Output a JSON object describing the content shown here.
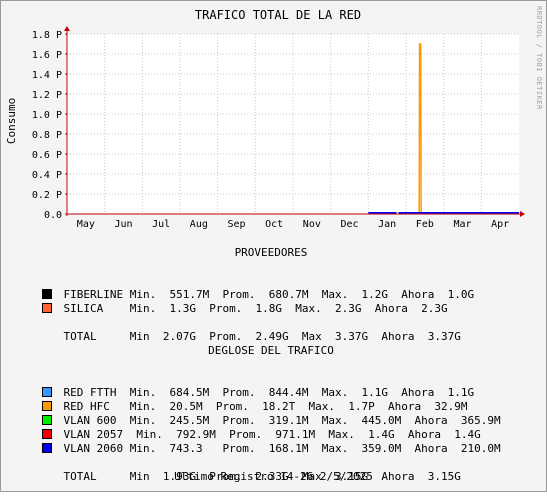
{
  "chart_data": {
    "type": "line",
    "title": "TRAFICO TOTAL DE LA RED",
    "ylabel": "Consumo",
    "watermark": "RRDTOOL / TOBI OETIKER",
    "categories": [
      "May",
      "Jun",
      "Jul",
      "Aug",
      "Sep",
      "Oct",
      "Nov",
      "Dec",
      "Jan",
      "Feb",
      "Mar",
      "Apr"
    ],
    "ylim": [
      0,
      1.8
    ],
    "yticks": [
      "0.0",
      "0.2 P",
      "0.4 P",
      "0.6 P",
      "0.8 P",
      "1.0 P",
      "1.2 P",
      "1.4 P",
      "1.6 P",
      "1.8 P"
    ],
    "grid": true,
    "series": [
      {
        "name": "RED HFC",
        "color": "#ff9900",
        "points": [
          {
            "month": 9.35,
            "value": 0
          },
          {
            "month": 9.36,
            "value": 1.7
          },
          {
            "month": 9.39,
            "value": 1.7
          },
          {
            "month": 9.4,
            "value": 0
          }
        ]
      },
      {
        "name": "VLAN 2060",
        "color": "#0000ff",
        "segments": [
          [
            8.0,
            8.75
          ],
          [
            8.8,
            12.0
          ]
        ],
        "value": 0
      }
    ]
  },
  "proveedores": {
    "title": "PROVEEDORES",
    "rows": [
      {
        "color": "#000000",
        "text": "FIBERLINE Min.  551.7M  Prom.  680.7M  Max.  1.2G  Ahora  1.0G"
      },
      {
        "color": "#ff6633",
        "text": "SILICA    Min.  1.3G  Prom.  1.8G  Max.  2.3G  Ahora  2.3G"
      }
    ],
    "total": "TOTAL     Min  2.07G  Prom.  2.49G  Max  3.37G  Ahora  3.37G"
  },
  "desglose": {
    "title": "DEGLOSE DEL TRAFICO",
    "rows": [
      {
        "color": "#3399ff",
        "text": "RED FTTH  Min.  684.5M  Prom.  844.4M  Max.  1.1G  Ahora  1.1G"
      },
      {
        "color": "#ff9900",
        "text": "RED HFC   Min.  20.5M  Prom.  18.2T  Max.  1.7P  Ahora  32.9M"
      },
      {
        "color": "#00ee00",
        "text": "VLAN 600  Min.  245.5M  Prom.  319.1M  Max.  445.0M  Ahora  365.9M"
      },
      {
        "color": "#ee0000",
        "text": "VLAN 2057  Min.  792.9M  Prom.  971.1M  Max.  1.4G  Ahora  1.4G"
      },
      {
        "color": "#0000ff",
        "text": "VLAN 2060 Min.  743.3   Prom.  168.1M  Max.  359.0M  Ahora  210.0M"
      }
    ],
    "total": "TOTAL     Min  1.93G  Prom.  2.33G  Max  3.15G  Ahora  3.15G"
  },
  "footer": "Ultimo Registro 14-26 2/5/2025"
}
